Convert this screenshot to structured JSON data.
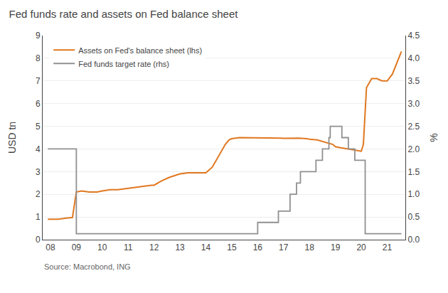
{
  "chart_data": {
    "type": "line",
    "title": "Fed funds rate and assets on Fed balance sheet",
    "ylabel": "USD tn",
    "y2label": "%",
    "annotations": [
      "Source: Macrobond, ING"
    ],
    "xlim": [
      2007.7,
      2021.7
    ],
    "xticks": [
      {
        "value": 2008,
        "label": "08"
      },
      {
        "value": 2009,
        "label": "09"
      },
      {
        "value": 2010,
        "label": "10"
      },
      {
        "value": 2011,
        "label": "11"
      },
      {
        "value": 2012,
        "label": "12"
      },
      {
        "value": 2013,
        "label": "13"
      },
      {
        "value": 2014,
        "label": "14"
      },
      {
        "value": 2015,
        "label": "15"
      },
      {
        "value": 2016,
        "label": "16"
      },
      {
        "value": 2017,
        "label": "17"
      },
      {
        "value": 2018,
        "label": "18"
      },
      {
        "value": 2019,
        "label": "19"
      },
      {
        "value": 2020,
        "label": "20"
      },
      {
        "value": 2021,
        "label": "21"
      }
    ],
    "ylim": [
      0,
      9
    ],
    "yticks": [
      0,
      1,
      2,
      3,
      4,
      5,
      6,
      7,
      8,
      9
    ],
    "y2lim": [
      0.0,
      4.5
    ],
    "y2ticks": [
      {
        "value": 0.0,
        "label": "0.0"
      },
      0.5,
      {
        "value": 1.0,
        "label": "1.0"
      },
      1.5,
      {
        "value": 2.0,
        "label": "2.0"
      },
      2.5,
      {
        "value": 3.0,
        "label": "3.0"
      },
      3.5,
      {
        "value": 4.0,
        "label": "4.0"
      },
      4.5
    ],
    "grid": true,
    "legend": "upper left",
    "series": [
      {
        "name": "Assets on Fed's balance sheet (lhs)",
        "color": "#E07820",
        "type": "line",
        "axis": "y",
        "x": [
          2007.9,
          2008.0,
          2008.3,
          2008.6,
          2008.85,
          2009.0,
          2009.2,
          2009.5,
          2009.8,
          2010.0,
          2010.3,
          2010.6,
          2010.9,
          2011.0,
          2011.3,
          2011.6,
          2011.9,
          2012.0,
          2012.3,
          2012.6,
          2012.9,
          2013.0,
          2013.3,
          2013.6,
          2013.9,
          2014.0,
          2014.25,
          2014.5,
          2014.75,
          2014.9,
          2015.0,
          2015.3,
          2015.6,
          2015.9,
          2016.0,
          2016.3,
          2016.6,
          2016.9,
          2017.0,
          2017.3,
          2017.6,
          2017.9,
          2018.0,
          2018.3,
          2018.6,
          2018.9,
          2019.0,
          2019.2,
          2019.5,
          2019.8,
          2020.0,
          2020.08,
          2020.2,
          2020.4,
          2020.6,
          2020.8,
          2021.0,
          2021.2,
          2021.4,
          2021.55
        ],
        "values": [
          0.9,
          0.9,
          0.9,
          0.95,
          0.98,
          2.1,
          2.15,
          2.1,
          2.1,
          2.15,
          2.2,
          2.2,
          2.25,
          2.25,
          2.3,
          2.35,
          2.4,
          2.4,
          2.6,
          2.75,
          2.85,
          2.9,
          2.95,
          2.95,
          2.95,
          2.95,
          3.2,
          3.7,
          4.2,
          4.4,
          4.45,
          4.5,
          4.5,
          4.5,
          4.5,
          4.5,
          4.5,
          4.48,
          4.47,
          4.47,
          4.48,
          4.45,
          4.43,
          4.4,
          4.3,
          4.2,
          4.1,
          4.05,
          4.0,
          3.95,
          3.9,
          4.2,
          6.7,
          7.1,
          7.1,
          7.0,
          7.0,
          7.3,
          7.9,
          8.3
        ]
      },
      {
        "name": "Fed funds target rate (rhs)",
        "color": "#909090",
        "type": "step",
        "axis": "y2",
        "x": [
          2007.9,
          2008.0,
          2008.3,
          2008.6,
          2008.8,
          2008.85,
          2009.0,
          2009.1,
          2015.8,
          2015.85,
          2016.0,
          2016.75,
          2016.8,
          2017.0,
          2017.25,
          2017.5,
          2017.65,
          2017.7,
          2018.0,
          2018.25,
          2018.5,
          2018.75,
          2018.8,
          2019.0,
          2019.25,
          2019.5,
          2019.75,
          2019.85,
          2020.0,
          2020.1,
          2020.15,
          2021.55
        ],
        "values": [
          2.0,
          2.0,
          2.0,
          2.0,
          2.0,
          2.0,
          0.13,
          0.13,
          0.13,
          0.13,
          0.38,
          0.38,
          0.63,
          0.63,
          1.0,
          1.25,
          1.5,
          1.5,
          1.5,
          1.75,
          2.0,
          2.25,
          2.5,
          2.5,
          2.25,
          2.0,
          1.75,
          1.75,
          1.75,
          1.75,
          0.13,
          0.13
        ]
      }
    ]
  }
}
